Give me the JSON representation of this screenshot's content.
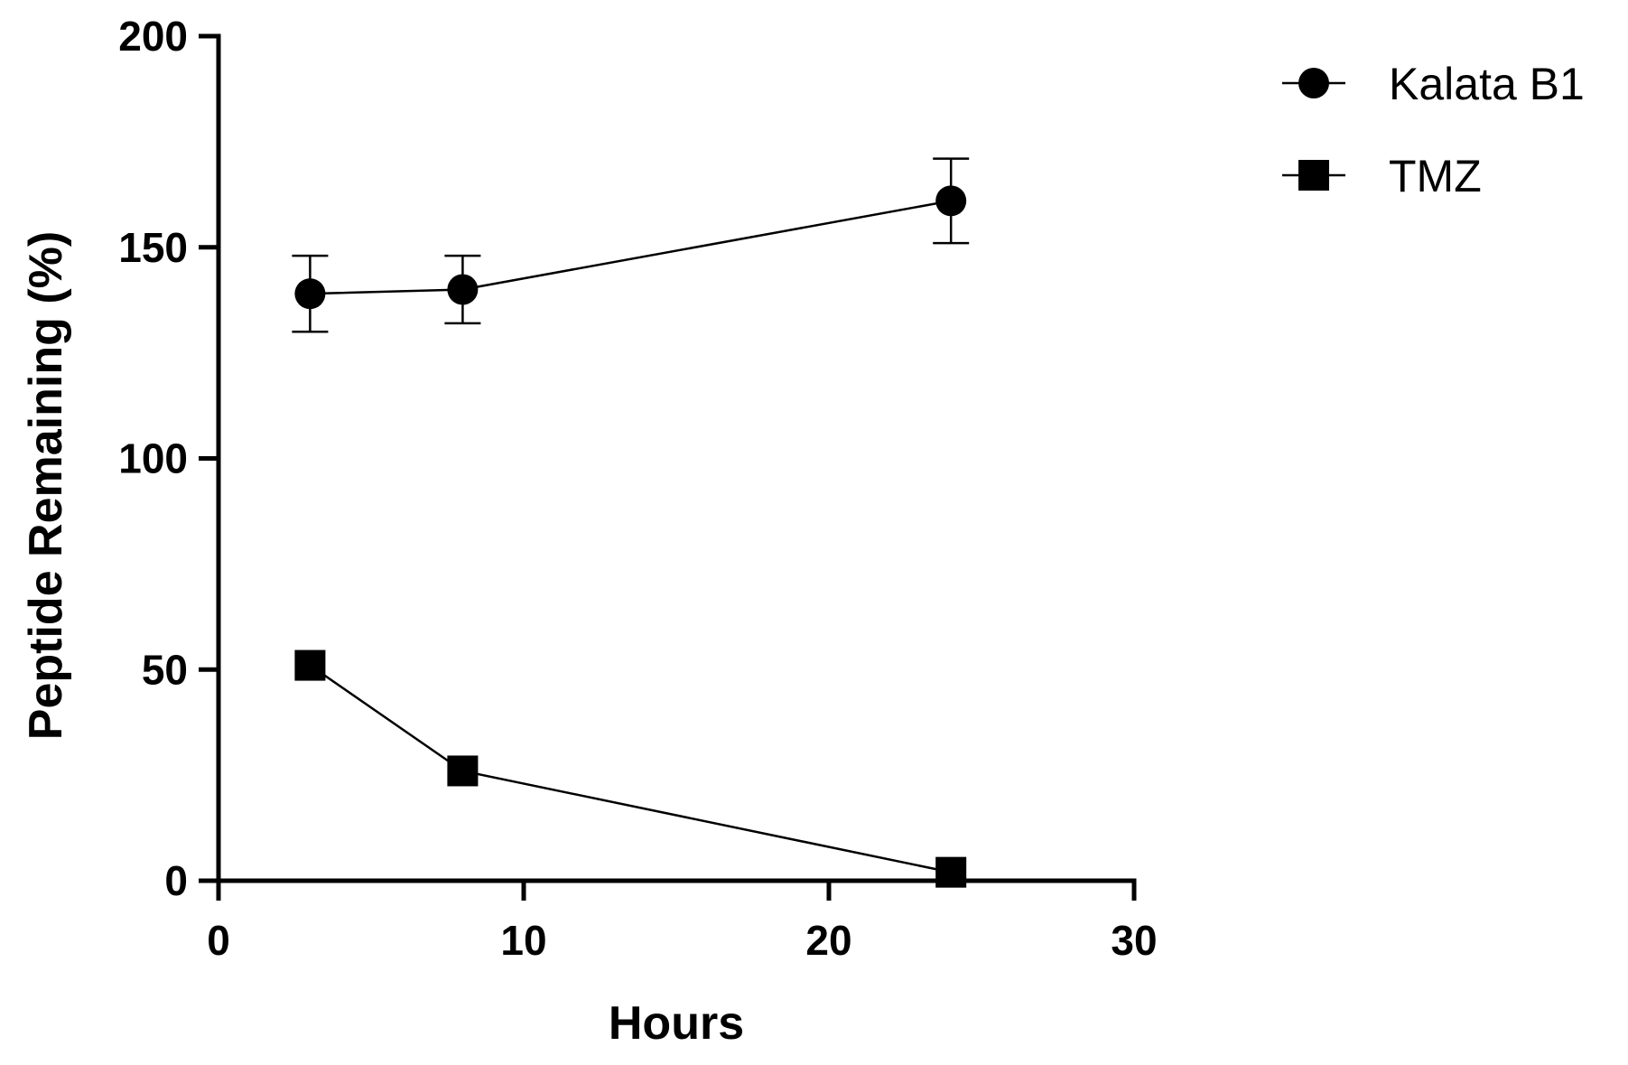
{
  "chart_data": {
    "type": "line",
    "xlabel": "Hours",
    "ylabel": "Peptide Remaining (%)",
    "xlim": [
      0,
      30
    ],
    "ylim": [
      0,
      200
    ],
    "xticks": [
      "0",
      "10",
      "20",
      "30"
    ],
    "yticks": [
      "0",
      "50",
      "100",
      "150",
      "200"
    ],
    "grid": false,
    "legend_position": "top-right",
    "series": [
      {
        "name": "Kalata B1",
        "marker": "circle",
        "x": [
          3,
          8,
          24
        ],
        "y": [
          139,
          140,
          161
        ],
        "error": [
          9,
          8,
          10
        ],
        "color": "#000000"
      },
      {
        "name": "TMZ",
        "marker": "square",
        "x": [
          3,
          8,
          24
        ],
        "y": [
          51,
          26,
          2
        ],
        "error": [
          null,
          null,
          null
        ],
        "color": "#000000"
      }
    ]
  }
}
